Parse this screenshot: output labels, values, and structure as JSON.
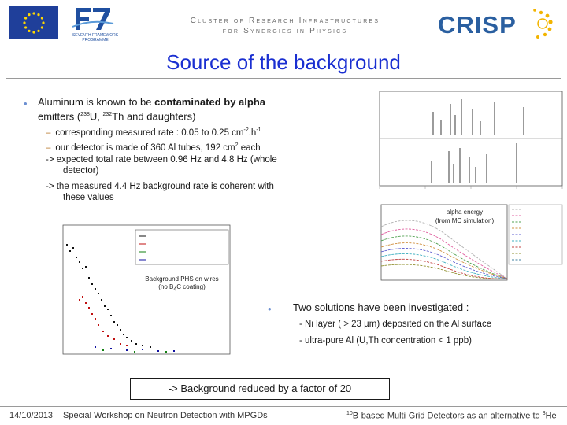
{
  "header": {
    "cluster_line1": "Cluster of Research Infrastructures",
    "cluster_line2": "for Synergies in Physics",
    "crisp_logo_text": "CRISP",
    "eu_flag": "eu-flag-icon",
    "fp7_logo": "fp7-logo",
    "fp7_sub1": "SEVENTH FRAMEWORK",
    "fp7_sub2": "PROGRAMME"
  },
  "slide": {
    "title": "Source of the background",
    "intro_a": "Aluminum is known to be ",
    "intro_bold": "contaminated by alpha",
    "intro_b": "emitters (",
    "u_iso": "238",
    "u_text": "U, ",
    "th_iso": "232",
    "th_text": "Th and daughters)",
    "sub1_a": "corresponding measured rate : 0.05 to 0.25 cm",
    "sub1_sup1": "-2",
    "sub1_b": ".h",
    "sub1_sup2": "-1",
    "sub2_a": "our detector is made of 360 Al tubes, 192 cm",
    "sub2_sup": "2",
    "sub2_b": " each",
    "sub3_a": "-> expected total rate between 0.96 Hz and 4.8 Hz (whole",
    "sub3_b": "detector)",
    "sub4_a": "-> the measured 4.4 Hz background rate is coherent with",
    "sub4_b": "these values",
    "solutions": "Two solutions have been investigated :",
    "sol1": "- Ni layer ( > 23 µm) deposited on the Al surface",
    "sol2": "- ultra-pure Al (U,Th concentration < 1 ppb)",
    "result": "-> Background reduced by a factor of 20"
  },
  "figures": {
    "phs_label_1": "Background PHS on wires",
    "phs_label_2a": "(no B",
    "phs_label_2sub": "4",
    "phs_label_2b": "C coating)",
    "alpha_label_1": "alpha energy",
    "alpha_label_2": "(from MC simulation)"
  },
  "footer": {
    "date": "14/10/2013",
    "event": "Special Workshop on Neutron Detection with MPGDs",
    "right_iso": "10",
    "right_a": "B-based Multi-Grid Detectors as an alternative to ",
    "right_iso2": "3",
    "right_b": "He"
  },
  "colors": {
    "title": "#1a2fd1",
    "crisp": "#2a5fa0",
    "bullet": "#6b8fd1",
    "dash": "#b97a2e"
  }
}
